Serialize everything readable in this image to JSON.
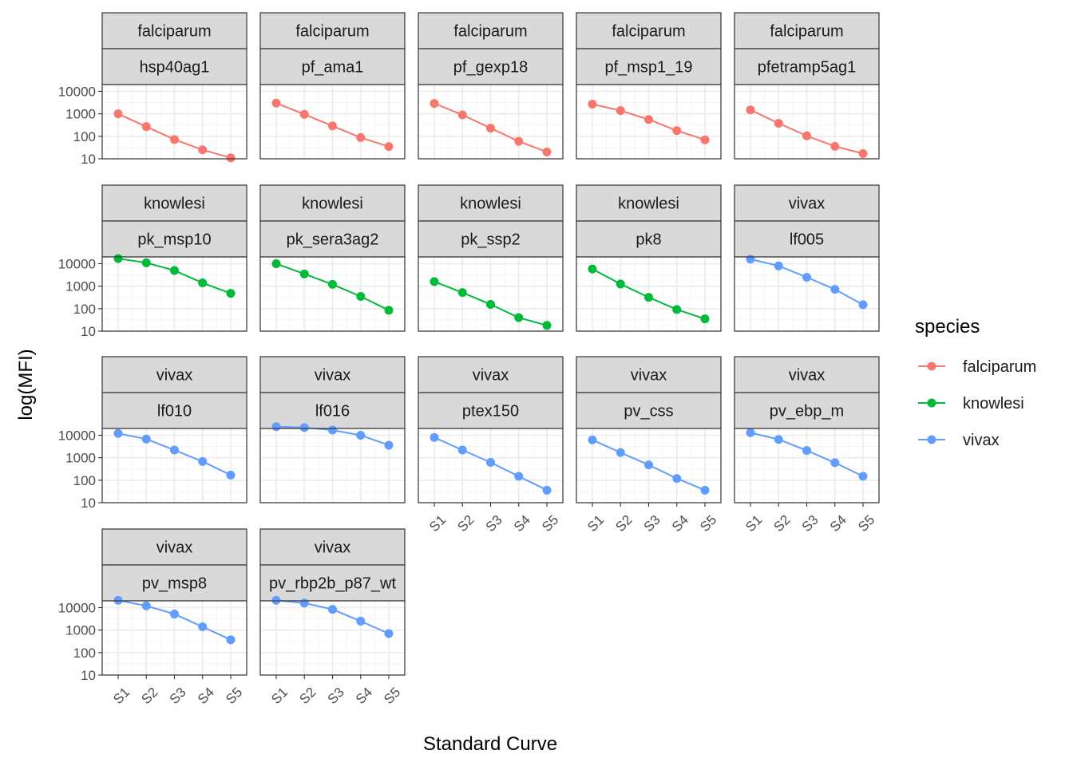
{
  "chart_data": {
    "type": "line",
    "xlabel": "Standard Curve",
    "ylabel": "log(MFI)",
    "x": [
      "S1",
      "S2",
      "S3",
      "S4",
      "S5"
    ],
    "y_scale": "log10",
    "ylim": [
      10,
      20000
    ],
    "y_ticks": [
      "10",
      "100",
      "1000",
      "10000"
    ],
    "grid": true,
    "facet_columns": 5,
    "legend": {
      "title": "species",
      "position": "right",
      "entries": [
        {
          "label": "falciparum",
          "color": "#F8766D"
        },
        {
          "label": "knowlesi",
          "color": "#00BA38"
        },
        {
          "label": "vivax",
          "color": "#619CFF"
        }
      ]
    },
    "panels": [
      {
        "species": "falciparum",
        "antigen": "hsp40ag1",
        "values": [
          1000,
          270,
          72,
          25,
          11
        ]
      },
      {
        "species": "falciparum",
        "antigen": "pf_ama1",
        "values": [
          3000,
          950,
          290,
          88,
          35
        ]
      },
      {
        "species": "falciparum",
        "antigen": "pf_gexp18",
        "values": [
          2900,
          900,
          230,
          60,
          20
        ]
      },
      {
        "species": "falciparum",
        "antigen": "pf_msp1_19",
        "values": [
          2700,
          1400,
          560,
          180,
          70
        ]
      },
      {
        "species": "falciparum",
        "antigen": "pfetramp5ag1",
        "values": [
          1500,
          380,
          105,
          36,
          17
        ]
      },
      {
        "species": "knowlesi",
        "antigen": "pk_msp10",
        "values": [
          17000,
          11000,
          5000,
          1400,
          480
        ]
      },
      {
        "species": "knowlesi",
        "antigen": "pk_sera3ag2",
        "values": [
          10000,
          3500,
          1200,
          350,
          85
        ]
      },
      {
        "species": "knowlesi",
        "antigen": "pk_ssp2",
        "values": [
          1600,
          520,
          155,
          40,
          18
        ]
      },
      {
        "species": "knowlesi",
        "antigen": "pk8",
        "values": [
          5800,
          1250,
          320,
          92,
          35
        ]
      },
      {
        "species": "vivax",
        "antigen": "lf005",
        "values": [
          16000,
          8000,
          2500,
          720,
          150
        ]
      },
      {
        "species": "vivax",
        "antigen": "lf010",
        "values": [
          12000,
          6800,
          2200,
          680,
          170
        ]
      },
      {
        "species": "vivax",
        "antigen": "lf016",
        "values": [
          24000,
          22000,
          17000,
          10000,
          3600
        ]
      },
      {
        "species": "vivax",
        "antigen": "ptex150",
        "values": [
          8000,
          2200,
          620,
          150,
          36
        ]
      },
      {
        "species": "vivax",
        "antigen": "pv_css",
        "values": [
          6200,
          1700,
          480,
          120,
          36
        ]
      },
      {
        "species": "vivax",
        "antigen": "pv_ebp_m",
        "values": [
          13000,
          6500,
          2100,
          600,
          150
        ]
      },
      {
        "species": "vivax",
        "antigen": "pv_msp8",
        "values": [
          21000,
          12000,
          5200,
          1400,
          370
        ]
      },
      {
        "species": "vivax",
        "antigen": "pv_rbp2b_p87_wt",
        "values": [
          21000,
          16000,
          8300,
          2500,
          700
        ]
      }
    ]
  }
}
